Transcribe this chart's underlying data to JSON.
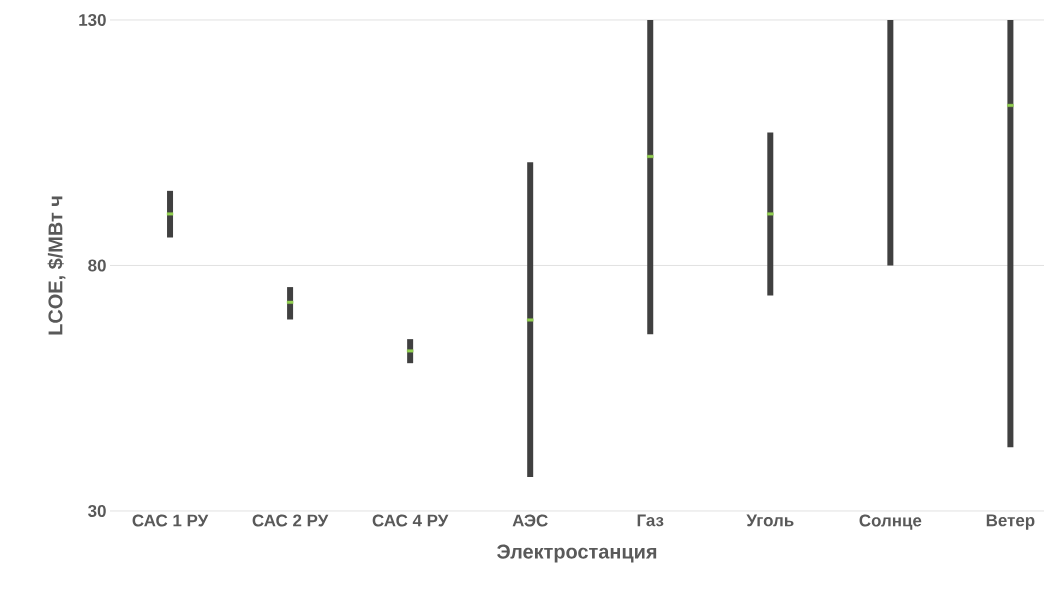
{
  "chart_data": {
    "type": "bar",
    "xlabel": "Электростанция",
    "ylabel": "LCOE, $/МВт ч",
    "categories": [
      "САС 1 РУ",
      "САС 2 РУ",
      "САС 4 РУ",
      "АЭС",
      "Газ",
      "Уголь",
      "Солнце",
      "Ветер"
    ],
    "ylim": [
      30,
      130
    ],
    "yticks": [
      30,
      80,
      130
    ],
    "grid": "y",
    "series": [
      {
        "color": "#404040",
        "base": [
          85.7,
          69.0,
          60.1,
          36.9,
          66,
          73.9,
          80,
          43
        ],
        "values": [
          9.5,
          6.6,
          4.9,
          64.1,
          64,
          33.2,
          50,
          87
        ]
      },
      {
        "type": "scatter",
        "color": "#92d050",
        "x": [
          "САС 1 РУ",
          "САС 2 РУ",
          "САС 4 РУ",
          "АЭС",
          "Газ",
          "Уголь",
          "Солнце",
          "Ветер"
        ],
        "values": [
          90.5,
          72.5,
          62.6,
          68.9,
          102.2,
          90.5,
          null,
          112.6
        ]
      }
    ]
  }
}
